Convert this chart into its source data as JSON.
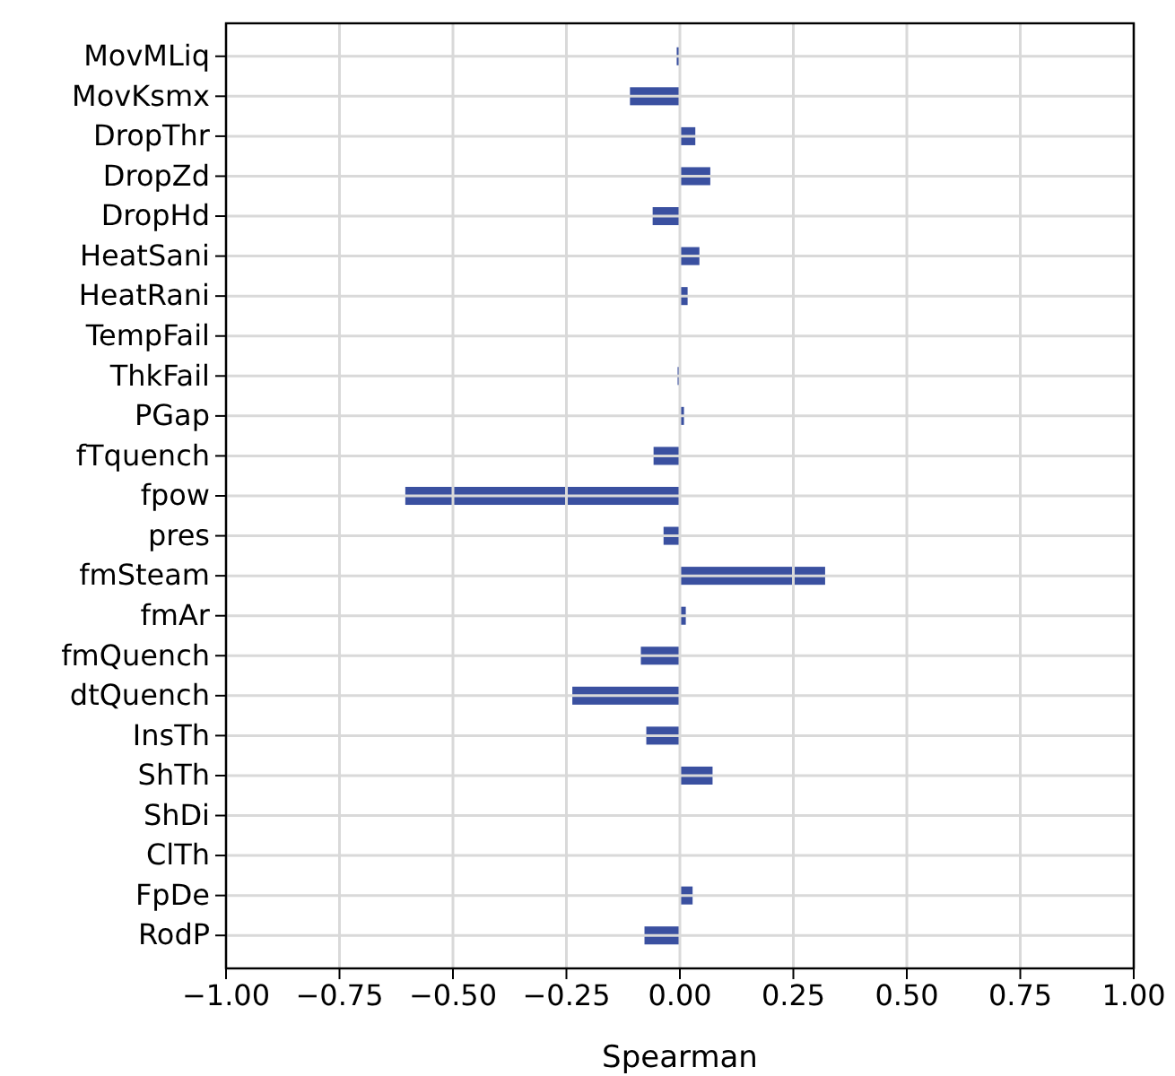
{
  "chart_data": {
    "type": "bar",
    "orientation": "horizontal",
    "xlabel": "Spearman",
    "categories": [
      "MovMLiq",
      "MovKsmx",
      "DropThr",
      "DropZd",
      "DropHd",
      "HeatSani",
      "HeatRani",
      "TempFail",
      "ThkFail",
      "PGap",
      "fTquench",
      "fpow",
      "pres",
      "fmSteam",
      "fmAr",
      "fmQuench",
      "dtQuench",
      "InsTh",
      "ShTh",
      "ShDi",
      "ClTh",
      "FpDe",
      "RodP"
    ],
    "values": [
      -0.007,
      -0.11,
      0.034,
      0.067,
      -0.06,
      0.043,
      0.017,
      0,
      -0.005,
      0.009,
      -0.058,
      -0.605,
      -0.036,
      0.32,
      0.013,
      -0.086,
      -0.237,
      -0.074,
      0.072,
      0,
      0,
      0.028,
      -0.078
    ],
    "color": "#3a50a0",
    "xlim": [
      -1,
      1
    ],
    "xticks": [
      {
        "value": -1,
        "label": "−1.00"
      },
      {
        "value": -0.75,
        "label": "−0.75"
      },
      {
        "value": -0.5,
        "label": "−0.50"
      },
      {
        "value": -0.25,
        "label": "−0.25"
      },
      {
        "value": 0,
        "label": "0.00"
      },
      {
        "value": 0.25,
        "label": "0.25"
      },
      {
        "value": 0.5,
        "label": "0.50"
      },
      {
        "value": 0.75,
        "label": "0.75"
      },
      {
        "value": 1,
        "label": "1.00"
      }
    ],
    "grid": true
  }
}
